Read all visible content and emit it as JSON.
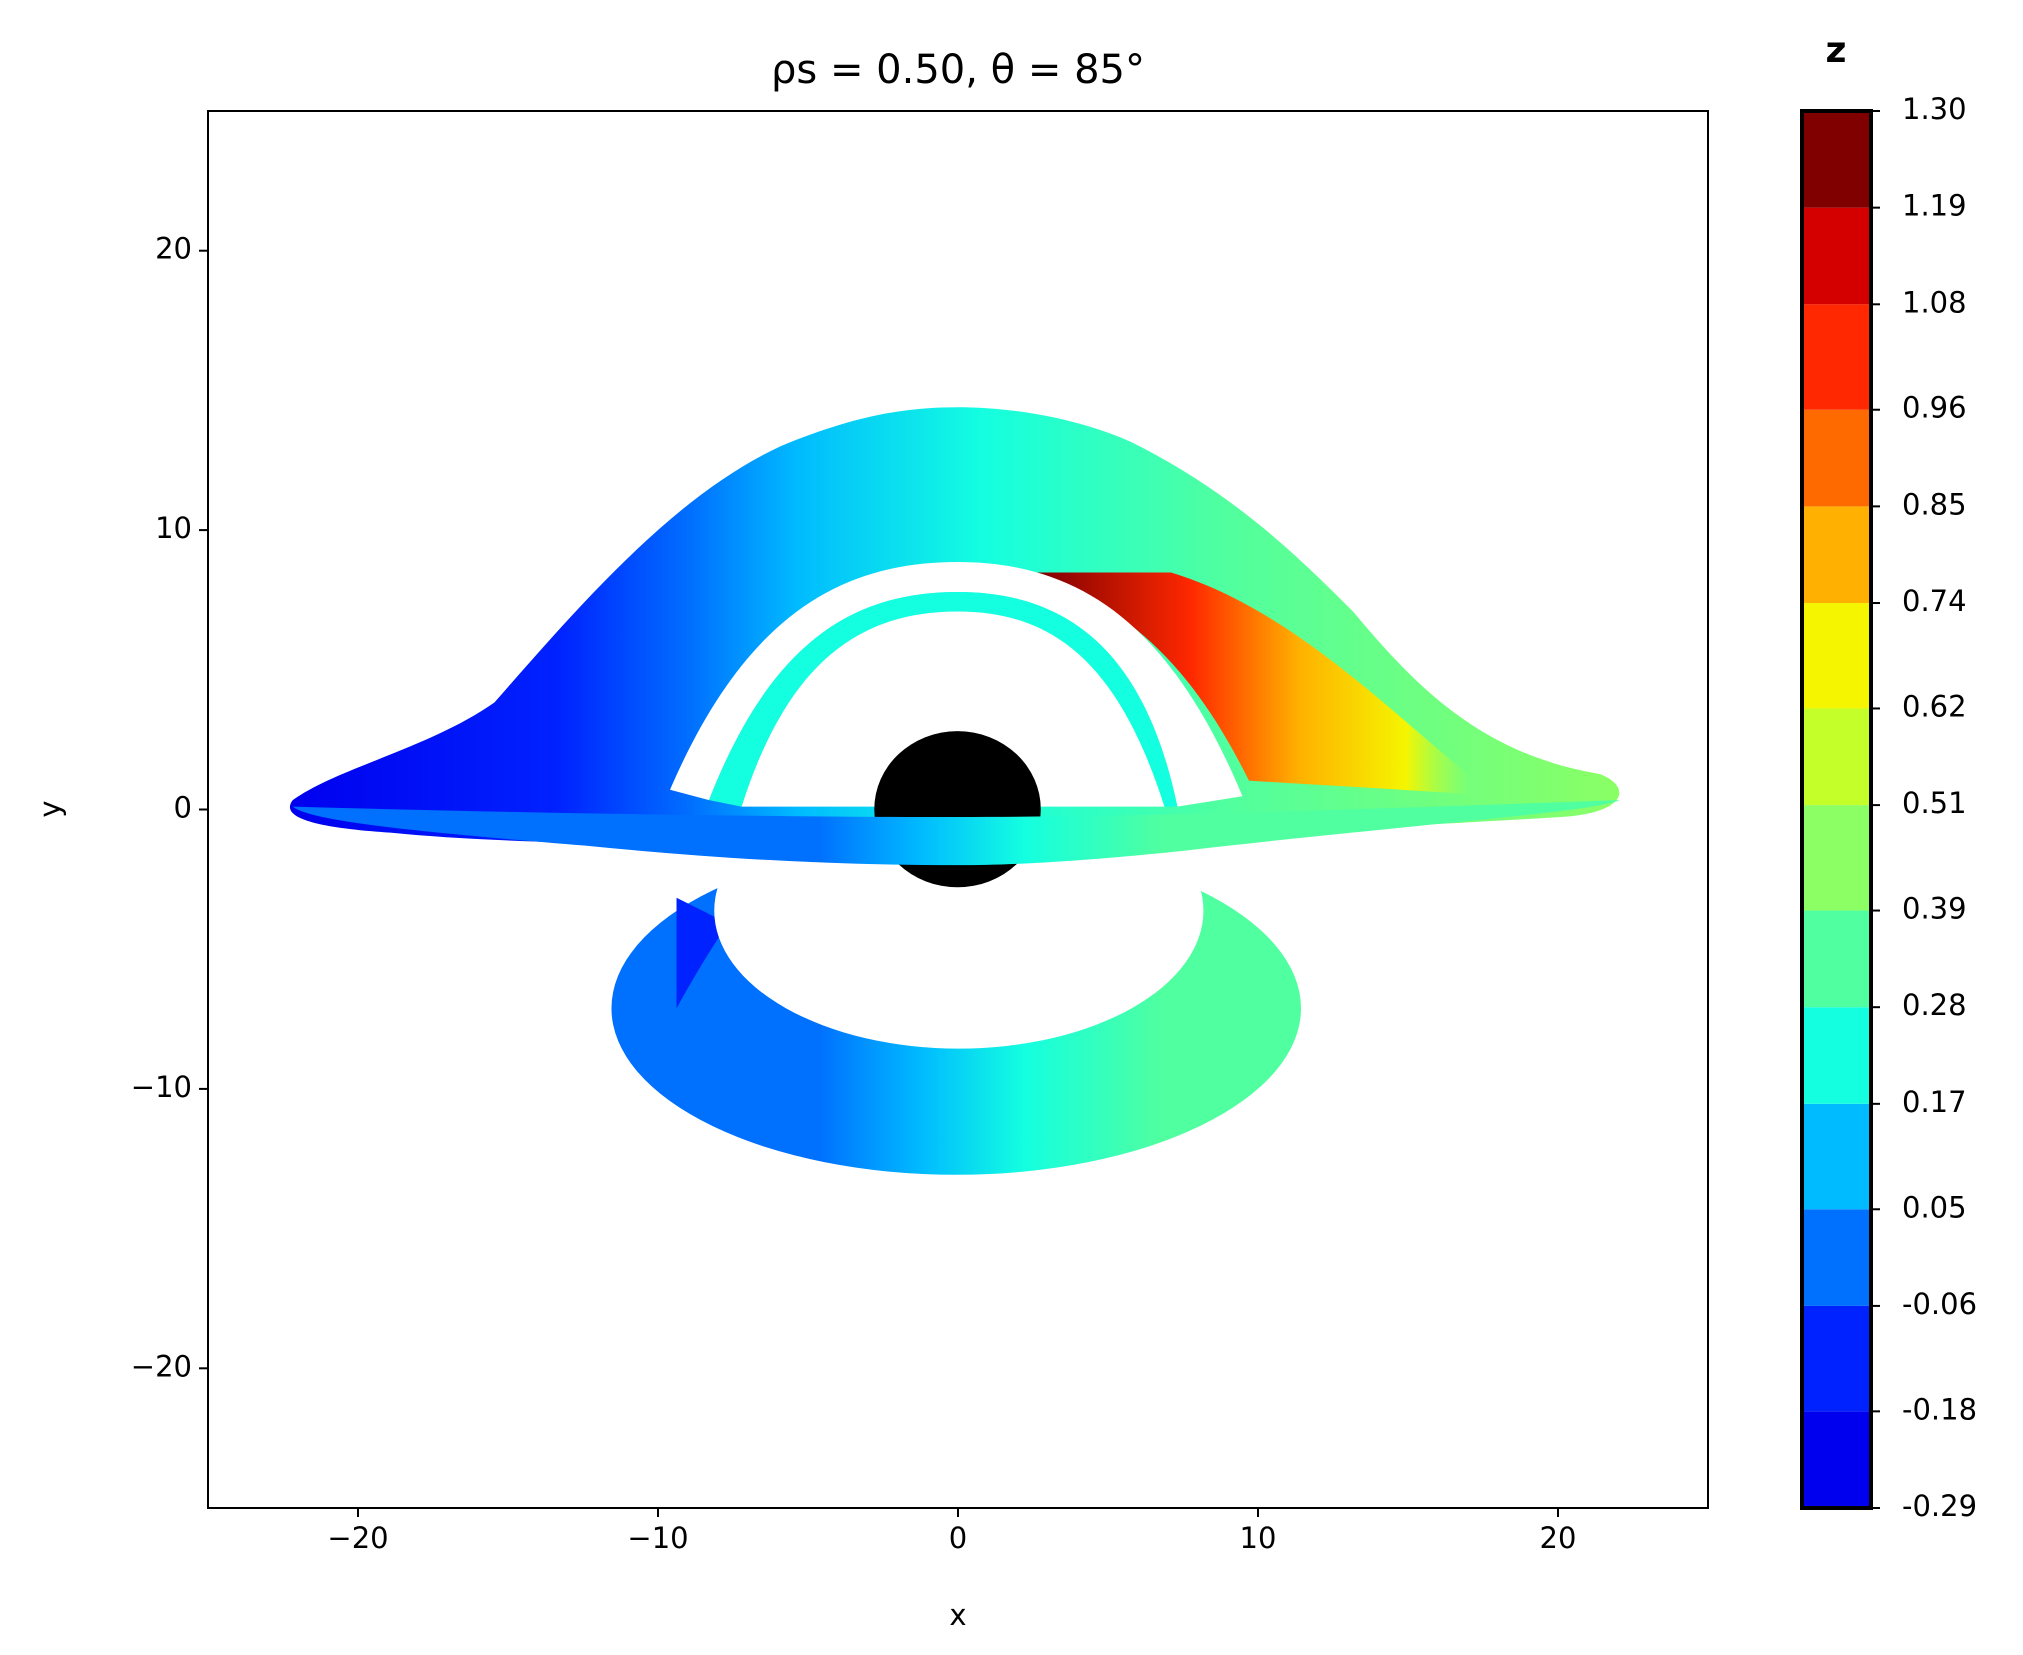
{
  "chart_data": {
    "type": "image",
    "title": "ρs = 0.50,  θ = 85°",
    "xlabel": "x",
    "ylabel": "y",
    "xlim": [
      -25,
      25
    ],
    "ylim": [
      -25,
      25
    ],
    "xticks": [
      {
        "value": -20,
        "label": "−20"
      },
      {
        "value": -10,
        "label": "−10"
      },
      0,
      10,
      20
    ],
    "yticks": [
      {
        "value": -20,
        "label": "−20"
      },
      {
        "value": -10,
        "label": "−10"
      },
      0,
      10,
      20
    ],
    "colorbar": {
      "label": "z",
      "lim": [
        -0.29,
        1.3
      ],
      "ticks": [
        -0.29,
        -0.18,
        -0.06,
        0.05,
        0.17,
        0.28,
        0.39,
        0.51,
        0.62,
        0.74,
        0.85,
        0.96,
        1.08,
        1.19,
        {
          "value": 1.3,
          "label": "1.30"
        }
      ],
      "colors": [
        "#0000ee",
        "#0022ff",
        "#0070ff",
        "#00bbff",
        "#14ffe0",
        "#50ff9f",
        "#8bff64",
        "#c5ff2a",
        "#f5f500",
        "#ffb000",
        "#ff6a00",
        "#ff2800",
        "#d40000",
        "#800000"
      ]
    }
  }
}
